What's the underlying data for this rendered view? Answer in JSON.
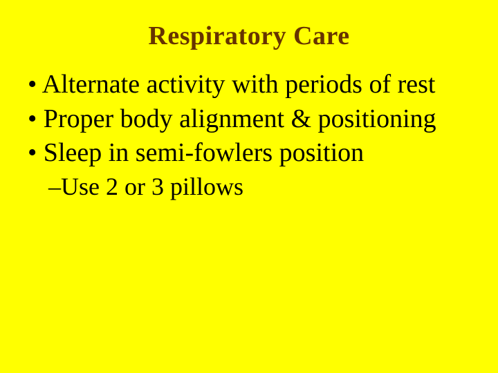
{
  "slide": {
    "background_color": "#ffff00",
    "title_color": "#663300",
    "text_color": "#000000",
    "title": "Respiratory Care",
    "bullets": [
      "• Alternate activity with periods of rest",
      "• Proper body alignment & positioning",
      "• Sleep in semi-fowlers position"
    ],
    "sub_bullet": "–Use 2 or 3 pillows",
    "title_fontsize": 38,
    "body_fontsize": 38,
    "sub_fontsize": 36,
    "font_family_title": "Georgia, serif",
    "font_family_body": "Times New Roman, serif"
  }
}
